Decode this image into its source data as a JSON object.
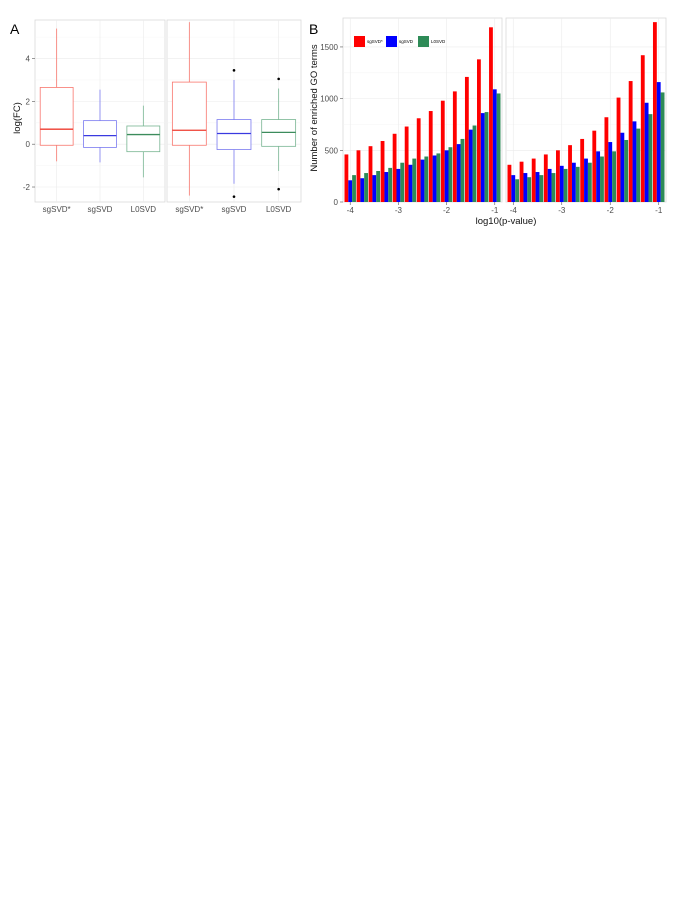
{
  "panel_labels": {
    "a": "A",
    "b": "B"
  },
  "colors": {
    "sgSVD*": "#ff0000",
    "sgSVD": "#0000ff",
    "L0SVD": "#2e8b57",
    "box_sgSVD*": "#f8766d",
    "box_sgSVD": "#7b7bf0",
    "box_L0SVD": "#78b592"
  },
  "chart_data": [
    {
      "type": "box",
      "panel": "A-left",
      "ylabel": "log(FC)",
      "ylim": [
        -2.7,
        5.8
      ],
      "yticks": [
        "-2",
        "0",
        "2",
        "4"
      ],
      "categories": [
        "sgSVD*",
        "sgSVD",
        "L0SVD"
      ],
      "boxes": [
        {
          "name": "sgSVD*",
          "min": -0.8,
          "q1": -0.05,
          "median": 0.7,
          "q3": 2.65,
          "max": 5.4,
          "outliers": []
        },
        {
          "name": "sgSVD",
          "min": -0.85,
          "q1": -0.15,
          "median": 0.4,
          "q3": 1.1,
          "max": 2.55,
          "outliers": []
        },
        {
          "name": "L0SVD",
          "min": -1.55,
          "q1": -0.35,
          "median": 0.45,
          "q3": 0.85,
          "max": 1.8,
          "outliers": []
        }
      ],
      "grid": true
    },
    {
      "type": "box",
      "panel": "A-right",
      "ylim": [
        -2.7,
        5.8
      ],
      "categories": [
        "sgSVD*",
        "sgSVD",
        "L0SVD"
      ],
      "boxes": [
        {
          "name": "sgSVD*",
          "min": -2.4,
          "q1": -0.05,
          "median": 0.65,
          "q3": 2.9,
          "max": 5.7,
          "outliers": []
        },
        {
          "name": "sgSVD",
          "min": -1.85,
          "q1": -0.25,
          "median": 0.5,
          "q3": 1.15,
          "max": 3.0,
          "outliers": [
            3.45,
            -2.45
          ]
        },
        {
          "name": "L0SVD",
          "min": -1.25,
          "q1": -0.1,
          "median": 0.55,
          "q3": 1.15,
          "max": 2.6,
          "outliers": [
            3.05,
            -2.1
          ]
        }
      ],
      "grid": true
    },
    {
      "type": "bar",
      "panel": "B-left",
      "xlabel": "log10(p-value)",
      "ylabel": "Number of enriched GO terms",
      "ylim": [
        0,
        1780
      ],
      "yticks": [
        "0",
        "500",
        "1000",
        "1500"
      ],
      "xticks": [
        "-4",
        "-3",
        "-2",
        "-1"
      ],
      "x": [
        -4.0,
        -3.75,
        -3.5,
        -3.25,
        -3.0,
        -2.75,
        -2.5,
        -2.25,
        -2.0,
        -1.75,
        -1.5,
        -1.25,
        -1.0
      ],
      "series": [
        {
          "name": "sgSVD*",
          "values": [
            460,
            500,
            540,
            590,
            660,
            730,
            810,
            880,
            980,
            1070,
            1210,
            1380,
            1690
          ]
        },
        {
          "name": "sgSVD",
          "values": [
            210,
            230,
            260,
            290,
            320,
            360,
            410,
            450,
            500,
            560,
            700,
            860,
            1090
          ]
        },
        {
          "name": "L0SVD",
          "values": [
            260,
            280,
            300,
            330,
            380,
            420,
            440,
            470,
            530,
            610,
            740,
            870,
            1050
          ]
        }
      ],
      "legend": {
        "position": "top-left",
        "entries": [
          "sgSVD*",
          "sgSVD",
          "L0SVD"
        ]
      },
      "grid": true
    },
    {
      "type": "bar",
      "panel": "B-right",
      "ylim": [
        0,
        1780
      ],
      "xticks": [
        "-4",
        "-3",
        "-2",
        "-1"
      ],
      "x": [
        -4.0,
        -3.75,
        -3.5,
        -3.25,
        -3.0,
        -2.75,
        -2.5,
        -2.25,
        -2.0,
        -1.75,
        -1.5,
        -1.25,
        -1.0
      ],
      "series": [
        {
          "name": "sgSVD*",
          "values": [
            360,
            390,
            420,
            460,
            500,
            550,
            610,
            690,
            820,
            1010,
            1170,
            1420,
            1740
          ]
        },
        {
          "name": "sgSVD",
          "values": [
            260,
            280,
            290,
            320,
            350,
            380,
            420,
            490,
            580,
            670,
            780,
            960,
            1160
          ]
        },
        {
          "name": "L0SVD",
          "values": [
            220,
            240,
            260,
            280,
            320,
            340,
            380,
            440,
            490,
            600,
            710,
            850,
            1060
          ]
        }
      ],
      "grid": true
    }
  ]
}
